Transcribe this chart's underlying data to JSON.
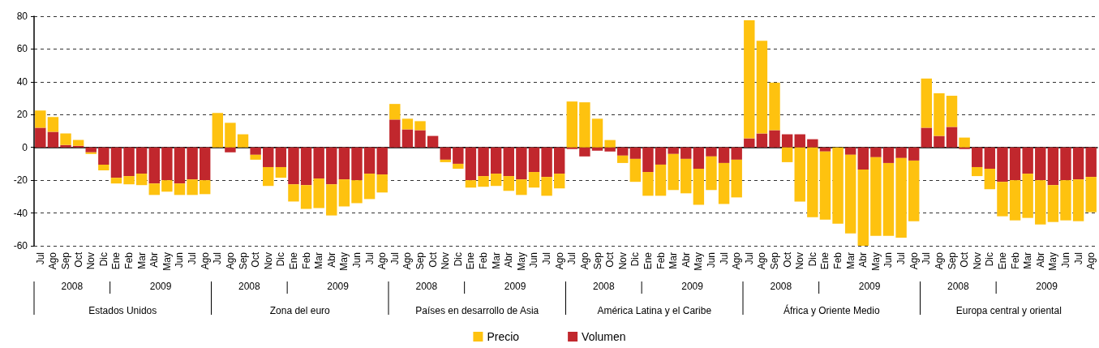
{
  "chart_data": {
    "type": "bar",
    "stacked": true,
    "categories": [
      "Jul",
      "Ago",
      "Sep",
      "Oct",
      "Nov",
      "Dic",
      "Ene",
      "Feb",
      "Mar",
      "Abr",
      "May",
      "Jun",
      "Jul",
      "Ago",
      "Jul",
      "Ago",
      "Sep",
      "Oct",
      "Nov",
      "Dic",
      "Ene",
      "Feb",
      "Mar",
      "Abr",
      "May",
      "Jun",
      "Jul",
      "Ago",
      "Jul",
      "Ago",
      "Sep",
      "Oct",
      "Nov",
      "Dic",
      "Ene",
      "Feb",
      "Mar",
      "Abr",
      "May",
      "Jun",
      "Jul",
      "Ago",
      "Jul",
      "Ago",
      "Sep",
      "Oct",
      "Nov",
      "Dic",
      "Ene",
      "Feb",
      "Mar",
      "Abr",
      "May",
      "Jun",
      "Jul",
      "Ago",
      "Jul",
      "Ago",
      "Sep",
      "Oct",
      "Nov",
      "Dic",
      "Ene",
      "Feb",
      "Mar",
      "Abr",
      "May",
      "Jun",
      "Jul",
      "Ago",
      "Jul",
      "Ago",
      "Sep",
      "Oct",
      "Nov",
      "Dic",
      "Ene",
      "Feb",
      "Mar",
      "Abr",
      "May",
      "Jun",
      "Jul",
      "Ago"
    ],
    "series": [
      {
        "name": "Volumen",
        "color": "#c1272d",
        "values": [
          12,
          9.5,
          1.5,
          1,
          -3,
          -10.5,
          -18.5,
          -17.5,
          -16,
          -22,
          -20,
          -22,
          -19.5,
          -20,
          0,
          -3,
          0,
          -4.5,
          -12,
          -12,
          -22.5,
          -23,
          -19,
          -22.5,
          -19.5,
          -20,
          -16,
          -16.5,
          17,
          11,
          10.5,
          7,
          -7.5,
          -10,
          -20,
          -17.5,
          -16,
          -17.5,
          -19.5,
          -15,
          -18,
          -16,
          -1,
          -5.5,
          -2,
          -2.5,
          -5,
          -7,
          -15,
          -10.5,
          -4,
          -7,
          -13,
          -5.5,
          -9.5,
          -7.5,
          5.5,
          8.5,
          10.5,
          8,
          8,
          5,
          -2.5,
          0,
          -4.5,
          -13.5,
          -6,
          -9.5,
          -6.5,
          -8,
          12,
          7,
          12.5,
          -1,
          -12,
          -13,
          -21,
          -20,
          -16,
          -20,
          -23,
          -20,
          -19.5,
          -18
        ]
      },
      {
        "name": "Precio",
        "color": "#fec20f",
        "values": [
          10.5,
          9,
          7,
          3.5,
          -1,
          -3.5,
          -3.5,
          -5,
          -7,
          -7,
          -7,
          -7,
          -9.5,
          -8.5,
          21,
          15,
          8,
          -3,
          -11.5,
          -6.5,
          -10.5,
          -14.5,
          -18,
          -19,
          -16.5,
          -14,
          -15.5,
          -11,
          9.5,
          6.5,
          5.5,
          0,
          -1.5,
          -3,
          -4.5,
          -6.5,
          -7.5,
          -9,
          -9.5,
          -9.5,
          -11.5,
          -9,
          28,
          27.5,
          17.5,
          4.5,
          -4.5,
          -14,
          -14.5,
          -19,
          -22,
          -21,
          -22,
          -20.5,
          -25,
          -23,
          72,
          56.5,
          29,
          -9,
          -33,
          -42.5,
          -41.5,
          -46.5,
          -48,
          -46.5,
          -48,
          -44.5,
          -48.5,
          -37,
          30,
          26,
          19,
          6,
          -5.5,
          -12.5,
          -21,
          -24.5,
          -27,
          -27,
          -22.5,
          -24.5,
          -25.5,
          -21.5
        ]
      }
    ],
    "ylim": [
      -60,
      80
    ],
    "yticks": [
      -60,
      -40,
      -20,
      0,
      20,
      40,
      60,
      80
    ],
    "grid": "y",
    "legend": "bottom",
    "annotations": [
      "2008",
      "2009",
      "Estados Unidos",
      "2008",
      "2009",
      "Zona del euro",
      "2008",
      "2009",
      "Países en desarrollo de Asia",
      "2008",
      "2009",
      "América Latina y el Caribe",
      "2008",
      "2009",
      "África y Oriente Medio",
      "2008",
      "2009",
      "Europa central y oriental"
    ]
  }
}
